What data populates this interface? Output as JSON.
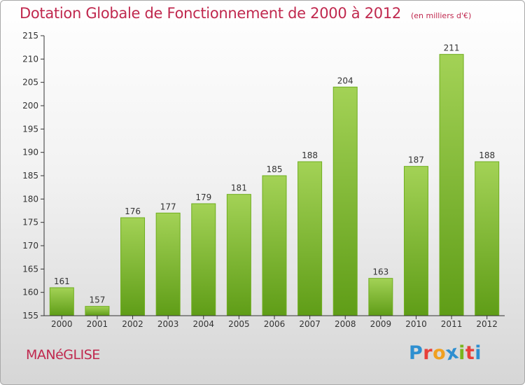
{
  "header": {
    "title": "Dotation Globale de Fonctionnement de 2000 à 2012",
    "unit_note": "(en milliers d'€)"
  },
  "footer": {
    "commune": "MANéGLISE",
    "brand": {
      "letters": [
        "P",
        "r",
        "o",
        "x",
        "i",
        "t",
        "i"
      ],
      "colors": [
        "#2e8fd0",
        "#e8403a",
        "#f0a020",
        "#2e8fd0",
        "#7ab51d",
        "#e8403a",
        "#2e8fd0"
      ]
    }
  },
  "chart_data": {
    "type": "bar",
    "categories": [
      "2000",
      "2001",
      "2002",
      "2003",
      "2004",
      "2005",
      "2006",
      "2007",
      "2008",
      "2009",
      "2010",
      "2011",
      "2012"
    ],
    "values": [
      161,
      157,
      176,
      177,
      179,
      181,
      185,
      188,
      204,
      163,
      187,
      211,
      188
    ],
    "ylim": [
      155,
      215
    ],
    "yticks": [
      155,
      160,
      165,
      170,
      175,
      180,
      185,
      190,
      195,
      200,
      205,
      210,
      215
    ],
    "grid": false,
    "data_labels": true,
    "colors": {
      "bar_top": "#a3d256",
      "bar_bottom": "#5f9d17",
      "bar_edge": "#6fae1f",
      "axis": "#333333"
    }
  }
}
